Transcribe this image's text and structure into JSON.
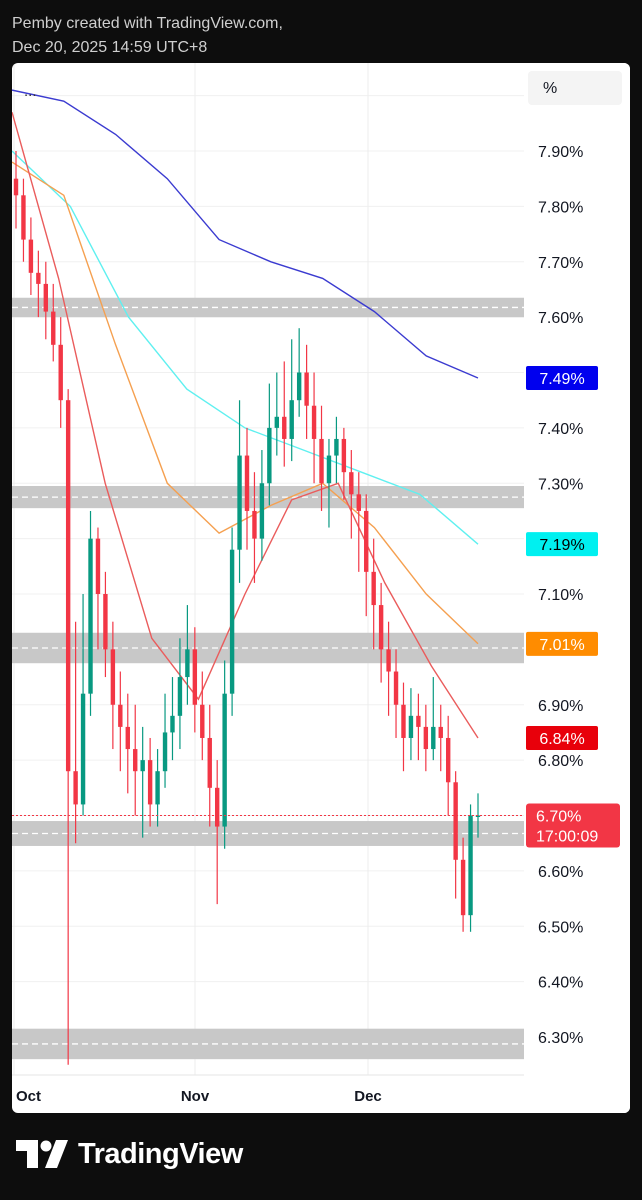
{
  "header": {
    "line1": "Pemby created with TradingView.com,",
    "line2": "Dec 20, 2025 14:59 UTC+8"
  },
  "toolbar": {
    "more_label": "...",
    "scale_label": "%"
  },
  "brand": {
    "name": "TradingView"
  },
  "chart_data": {
    "type": "candlestick",
    "y_unit": "%",
    "ylim": [
      6.24,
      8.02
    ],
    "y_ticks": [
      "7.90%",
      "7.80%",
      "7.70%",
      "7.60%",
      "7.40%",
      "7.30%",
      "7.10%",
      "6.90%",
      "6.80%",
      "6.60%",
      "6.50%",
      "6.40%",
      "6.30%"
    ],
    "y_tick_values": [
      7.9,
      7.8,
      7.7,
      7.6,
      7.4,
      7.3,
      7.1,
      6.9,
      6.8,
      6.6,
      6.5,
      6.4,
      6.3
    ],
    "x_ticks": [
      "Oct",
      "Nov",
      "Dec"
    ],
    "grid": true,
    "colors": {
      "up": "#089981",
      "down": "#f23645",
      "zone": "#c8c8c8"
    },
    "price_labels": [
      {
        "text": "7.49%",
        "value": 7.49,
        "color": "#0000ee",
        "text_color": "#ffffff"
      },
      {
        "text": "7.19%",
        "value": 7.19,
        "color": "#00f0f0",
        "text_color": "#000000"
      },
      {
        "text": "7.01%",
        "value": 7.01,
        "color": "#ff8c00",
        "text_color": "#ffffff"
      },
      {
        "text": "6.84%",
        "value": 6.84,
        "color": "#e8000b",
        "text_color": "#ffffff"
      }
    ],
    "last_price": {
      "text": "6.70%",
      "value": 6.7,
      "countdown": "17:00:09",
      "color": "#f23645"
    },
    "zones": [
      {
        "from": 7.6,
        "to": 7.635
      },
      {
        "from": 7.255,
        "to": 7.295
      },
      {
        "from": 6.975,
        "to": 7.03
      },
      {
        "from": 6.645,
        "to": 6.69
      },
      {
        "from": 6.26,
        "to": 6.315
      }
    ],
    "moving_averages": [
      {
        "color": "#3b3bd0",
        "values": [
          8.01,
          7.99,
          7.93,
          7.85,
          7.74,
          7.7,
          7.67,
          7.61,
          7.53,
          7.49
        ]
      },
      {
        "color": "#5ff0f0",
        "values": [
          7.9,
          7.8,
          7.6,
          7.47,
          7.4,
          7.36,
          7.32,
          7.28,
          7.19
        ]
      },
      {
        "color": "#f5a050",
        "values": [
          7.88,
          7.82,
          7.55,
          7.3,
          7.21,
          7.26,
          7.3,
          7.22,
          7.1,
          7.01
        ]
      },
      {
        "color": "#ea5c5c",
        "values": [
          7.97,
          7.67,
          7.3,
          7.02,
          6.91,
          7.1,
          7.27,
          7.3,
          7.12,
          6.97,
          6.84
        ]
      }
    ],
    "candles": [
      [
        7.85,
        7.82,
        7.9,
        7.76
      ],
      [
        7.82,
        7.74,
        7.85,
        7.7
      ],
      [
        7.74,
        7.68,
        7.78,
        7.64
      ],
      [
        7.68,
        7.66,
        7.72,
        7.6
      ],
      [
        7.66,
        7.61,
        7.7,
        7.56
      ],
      [
        7.61,
        7.55,
        7.66,
        7.52
      ],
      [
        7.55,
        7.45,
        7.6,
        7.4
      ],
      [
        7.45,
        6.78,
        7.47,
        6.25
      ],
      [
        6.78,
        6.72,
        7.05,
        6.65
      ],
      [
        6.72,
        6.92,
        7.1,
        6.7
      ],
      [
        6.92,
        7.2,
        7.25,
        6.88
      ],
      [
        7.2,
        7.1,
        7.22,
        7.0
      ],
      [
        7.1,
        7.0,
        7.14,
        6.95
      ],
      [
        7.0,
        6.9,
        7.05,
        6.82
      ],
      [
        6.9,
        6.86,
        6.96,
        6.78
      ],
      [
        6.86,
        6.82,
        6.92,
        6.74
      ],
      [
        6.82,
        6.78,
        6.9,
        6.7
      ],
      [
        6.78,
        6.8,
        6.86,
        6.66
      ],
      [
        6.8,
        6.72,
        6.84,
        6.68
      ],
      [
        6.72,
        6.78,
        6.82,
        6.68
      ],
      [
        6.78,
        6.85,
        6.92,
        6.75
      ],
      [
        6.85,
        6.88,
        6.95,
        6.8
      ],
      [
        6.88,
        6.95,
        7.02,
        6.82
      ],
      [
        6.95,
        7.0,
        7.08,
        6.9
      ],
      [
        7.0,
        6.9,
        7.04,
        6.85
      ],
      [
        6.9,
        6.84,
        6.96,
        6.8
      ],
      [
        6.84,
        6.75,
        6.9,
        6.68
      ],
      [
        6.75,
        6.68,
        6.8,
        6.54
      ],
      [
        6.68,
        6.92,
        6.98,
        6.64
      ],
      [
        6.92,
        7.18,
        7.22,
        6.88
      ],
      [
        7.18,
        7.35,
        7.45,
        7.12
      ],
      [
        7.35,
        7.25,
        7.4,
        7.18
      ],
      [
        7.25,
        7.2,
        7.32,
        7.12
      ],
      [
        7.2,
        7.3,
        7.36,
        7.16
      ],
      [
        7.3,
        7.4,
        7.48,
        7.26
      ],
      [
        7.4,
        7.42,
        7.5,
        7.35
      ],
      [
        7.42,
        7.38,
        7.52,
        7.33
      ],
      [
        7.38,
        7.45,
        7.56,
        7.34
      ],
      [
        7.45,
        7.5,
        7.58,
        7.42
      ],
      [
        7.5,
        7.44,
        7.55,
        7.38
      ],
      [
        7.44,
        7.38,
        7.5,
        7.3
      ],
      [
        7.38,
        7.3,
        7.44,
        7.25
      ],
      [
        7.3,
        7.35,
        7.38,
        7.22
      ],
      [
        7.35,
        7.38,
        7.42,
        7.3
      ],
      [
        7.38,
        7.32,
        7.4,
        7.27
      ],
      [
        7.32,
        7.28,
        7.36,
        7.2
      ],
      [
        7.28,
        7.25,
        7.32,
        7.14
      ],
      [
        7.25,
        7.14,
        7.28,
        7.06
      ],
      [
        7.14,
        7.08,
        7.2,
        7.0
      ],
      [
        7.08,
        7.0,
        7.12,
        6.94
      ],
      [
        7.0,
        6.96,
        7.05,
        6.88
      ],
      [
        6.96,
        6.9,
        7.0,
        6.84
      ],
      [
        6.9,
        6.84,
        6.94,
        6.78
      ],
      [
        6.84,
        6.88,
        6.93,
        6.8
      ],
      [
        6.88,
        6.86,
        6.92,
        6.8
      ],
      [
        6.86,
        6.82,
        6.9,
        6.78
      ],
      [
        6.82,
        6.86,
        6.95,
        6.8
      ],
      [
        6.86,
        6.84,
        6.9,
        6.78
      ],
      [
        6.84,
        6.76,
        6.88,
        6.7
      ],
      [
        6.76,
        6.62,
        6.78,
        6.55
      ],
      [
        6.62,
        6.52,
        6.66,
        6.49
      ],
      [
        6.52,
        6.7,
        6.72,
        6.49
      ],
      [
        6.7,
        6.7,
        6.74,
        6.66
      ]
    ]
  }
}
